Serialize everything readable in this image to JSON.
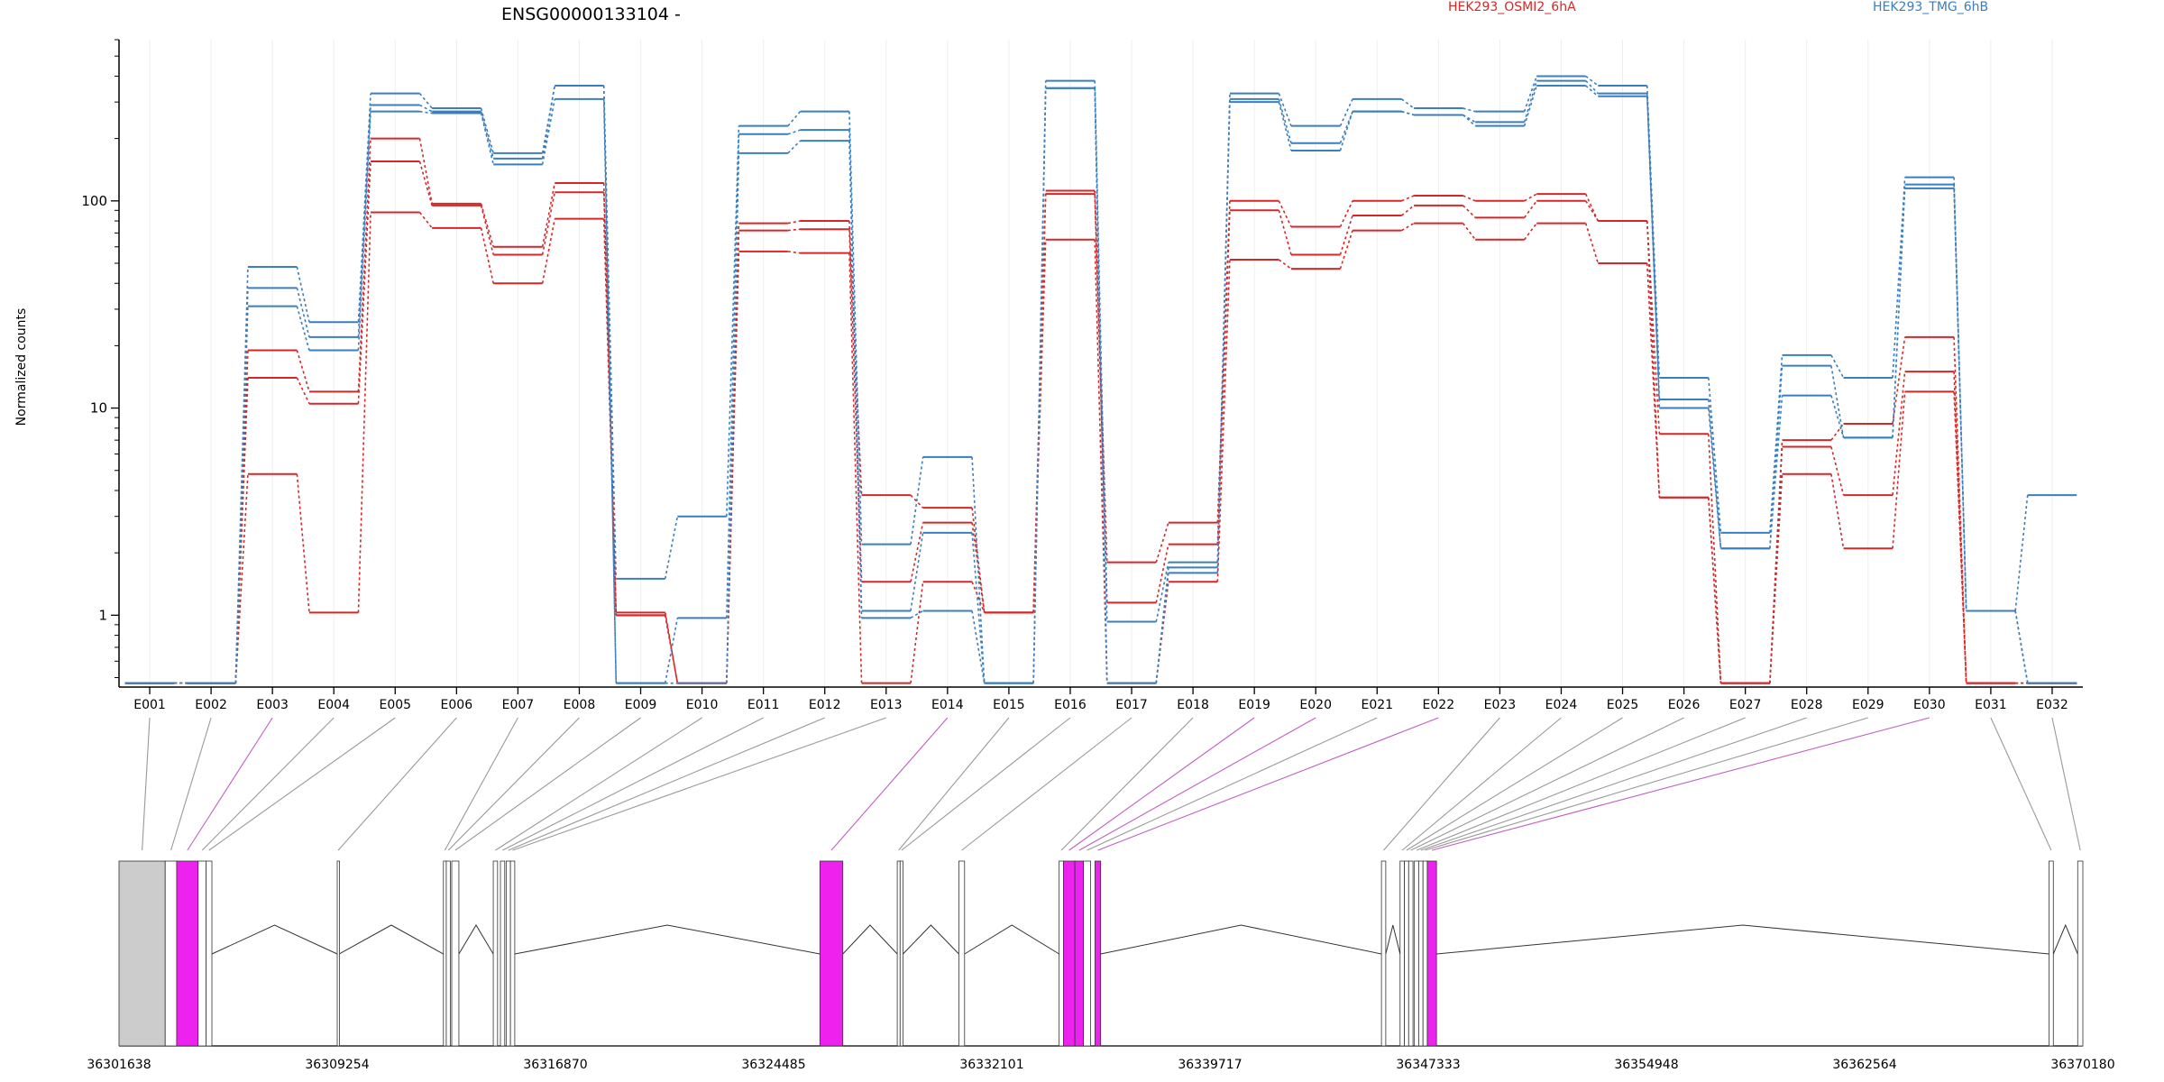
{
  "header": {
    "gene": "ENSG00000133104 -",
    "legend": [
      {
        "label": "HEK293_OSMI2_6hA",
        "color": "#d62728"
      },
      {
        "label": "HEK293_TMG_6hB",
        "color": "#3a7ebf"
      }
    ]
  },
  "chart_data": [
    {
      "type": "line",
      "title": "",
      "ylabel": "Normalized counts",
      "yscale": "log",
      "ylim": [
        0.45,
        600
      ],
      "yticks": [
        1,
        10,
        100
      ],
      "ytick_labels": [
        "1",
        "10",
        "100"
      ],
      "categories": [
        "E001",
        "E002",
        "E003",
        "E004",
        "E005",
        "E006",
        "E007",
        "E008",
        "E009",
        "E010",
        "E011",
        "E012",
        "E013",
        "E014",
        "E015",
        "E016",
        "E017",
        "E018",
        "E019",
        "E020",
        "E021",
        "E022",
        "E023",
        "E024",
        "E025",
        "E026",
        "E027",
        "E028",
        "E029",
        "E030",
        "E031",
        "E032"
      ],
      "grid": "vertical",
      "series": [
        {
          "group": "HEK293_OSMI2_6hA",
          "color": "#d62728",
          "values": [
            0.47,
            0.47,
            19,
            12,
            200,
            97,
            60,
            122,
            1.03,
            0.47,
            78,
            80,
            3.8,
            3.3,
            1.03,
            112,
            1.8,
            2.8,
            100,
            75,
            100,
            106,
            100,
            108,
            80,
            7.5,
            0.47,
            7,
            8.4,
            22,
            0.47,
            0.47
          ]
        },
        {
          "group": "HEK293_OSMI2_6hA",
          "color": "#d62728",
          "values": [
            0.47,
            0.47,
            14,
            10.5,
            155,
            95,
            55,
            110,
            1.0,
            0.47,
            72,
            73,
            1.45,
            2.8,
            1.03,
            108,
            1.15,
            2.2,
            90,
            55,
            85,
            95,
            83,
            100,
            80,
            3.7,
            0.47,
            6.5,
            3.8,
            15,
            0.47,
            0.47
          ]
        },
        {
          "group": "HEK293_OSMI2_6hA",
          "color": "#d62728",
          "values": [
            0.47,
            0.47,
            4.8,
            1.03,
            88,
            74,
            40,
            82,
            1.0,
            0.47,
            57,
            56,
            0.47,
            1.45,
            1.03,
            65,
            0.47,
            1.45,
            52,
            47,
            72,
            78,
            65,
            78,
            50,
            3.7,
            0.47,
            4.8,
            2.1,
            12,
            0.47,
            0.47
          ]
        },
        {
          "group": "HEK293_TMG_6hB",
          "color": "#3a7ebf",
          "values": [
            0.47,
            0.47,
            48,
            26,
            330,
            280,
            170,
            360,
            1.5,
            3.0,
            230,
            270,
            2.2,
            5.8,
            0.47,
            380,
            0.93,
            1.8,
            330,
            230,
            310,
            280,
            270,
            400,
            360,
            14,
            2.5,
            18,
            14,
            130,
            1.05,
            3.8
          ]
        },
        {
          "group": "HEK293_TMG_6hB",
          "color": "#3a7ebf",
          "values": [
            0.47,
            0.47,
            38,
            22,
            290,
            270,
            160,
            360,
            0.47,
            0.97,
            210,
            220,
            1.05,
            2.5,
            0.47,
            350,
            0.47,
            1.6,
            310,
            190,
            270,
            260,
            240,
            380,
            330,
            11,
            2.1,
            16,
            7.2,
            120,
            1.05,
            0.47
          ]
        },
        {
          "group": "HEK293_TMG_6hB",
          "color": "#3a7ebf",
          "values": [
            0.47,
            0.47,
            31,
            19,
            270,
            265,
            150,
            310,
            0.47,
            0.47,
            170,
            195,
            0.97,
            1.05,
            0.47,
            350,
            0.47,
            1.7,
            300,
            175,
            270,
            260,
            230,
            360,
            320,
            10,
            2.1,
            11.5,
            7.2,
            115,
            1.05,
            0.47
          ]
        }
      ]
    },
    {
      "type": "table",
      "title": "",
      "xlabel": "",
      "xlim": [
        36301638,
        36370180
      ],
      "xtick_labels": [
        "36301638",
        "36309254",
        "36316870",
        "36324485",
        "36332101",
        "36339717",
        "36347333",
        "36354948",
        "36362564",
        "36370180"
      ],
      "exon_colors": {
        "default": "#ffffff",
        "utr": "#cccccc",
        "highlight": "#ee22ee"
      },
      "exons": [
        {
          "id": "E001",
          "start": 36301638,
          "end": 36303250,
          "kind": "utr"
        },
        {
          "id": "E002",
          "start": 36303250,
          "end": 36303650,
          "kind": "plain"
        },
        {
          "id": "E003",
          "start": 36303650,
          "end": 36304400,
          "kind": "highlight"
        },
        {
          "id": "E004",
          "start": 36304400,
          "end": 36304680,
          "kind": "plain"
        },
        {
          "id": "E005",
          "start": 36304680,
          "end": 36304880,
          "kind": "plain"
        },
        {
          "id": "E006",
          "start": 36309254,
          "end": 36309320,
          "kind": "plain"
        },
        {
          "id": "E007",
          "start": 36312960,
          "end": 36313060,
          "kind": "plain"
        },
        {
          "id": "E008",
          "start": 36313060,
          "end": 36313200,
          "kind": "plain"
        },
        {
          "id": "E009",
          "start": 36313250,
          "end": 36313500,
          "kind": "plain"
        },
        {
          "id": "E010",
          "start": 36314700,
          "end": 36314850,
          "kind": "plain"
        },
        {
          "id": "E011",
          "start": 36314950,
          "end": 36315100,
          "kind": "plain"
        },
        {
          "id": "E012",
          "start": 36315150,
          "end": 36315300,
          "kind": "plain"
        },
        {
          "id": "E013",
          "start": 36315300,
          "end": 36315450,
          "kind": "plain"
        },
        {
          "id": "E014",
          "start": 36326100,
          "end": 36326900,
          "kind": "highlight"
        },
        {
          "id": "E015",
          "start": 36328800,
          "end": 36328900,
          "kind": "plain"
        },
        {
          "id": "E016",
          "start": 36328900,
          "end": 36329000,
          "kind": "plain"
        },
        {
          "id": "E017",
          "start": 36330950,
          "end": 36331150,
          "kind": "plain"
        },
        {
          "id": "E018",
          "start": 36334450,
          "end": 36334600,
          "kind": "plain"
        },
        {
          "id": "E019",
          "start": 36334600,
          "end": 36335000,
          "kind": "highlight"
        },
        {
          "id": "E020",
          "start": 36335000,
          "end": 36335300,
          "kind": "highlight"
        },
        {
          "id": "E021",
          "start": 36335300,
          "end": 36335550,
          "kind": "plain"
        },
        {
          "id": "E022",
          "start": 36335700,
          "end": 36335900,
          "kind": "highlight"
        },
        {
          "id": "E023",
          "start": 36345700,
          "end": 36345850,
          "kind": "plain"
        },
        {
          "id": "E024",
          "start": 36346350,
          "end": 36346500,
          "kind": "plain"
        },
        {
          "id": "E025",
          "start": 36346500,
          "end": 36346650,
          "kind": "plain"
        },
        {
          "id": "E026",
          "start": 36346650,
          "end": 36346800,
          "kind": "plain"
        },
        {
          "id": "E027",
          "start": 36346850,
          "end": 36347000,
          "kind": "plain"
        },
        {
          "id": "E028",
          "start": 36347000,
          "end": 36347150,
          "kind": "plain"
        },
        {
          "id": "E029",
          "start": 36347150,
          "end": 36347300,
          "kind": "plain"
        },
        {
          "id": "E030",
          "start": 36347300,
          "end": 36347620,
          "kind": "highlight"
        },
        {
          "id": "E031",
          "start": 36369000,
          "end": 36369150,
          "kind": "plain"
        },
        {
          "id": "E032",
          "start": 36370000,
          "end": 36370180,
          "kind": "plain"
        }
      ]
    }
  ]
}
